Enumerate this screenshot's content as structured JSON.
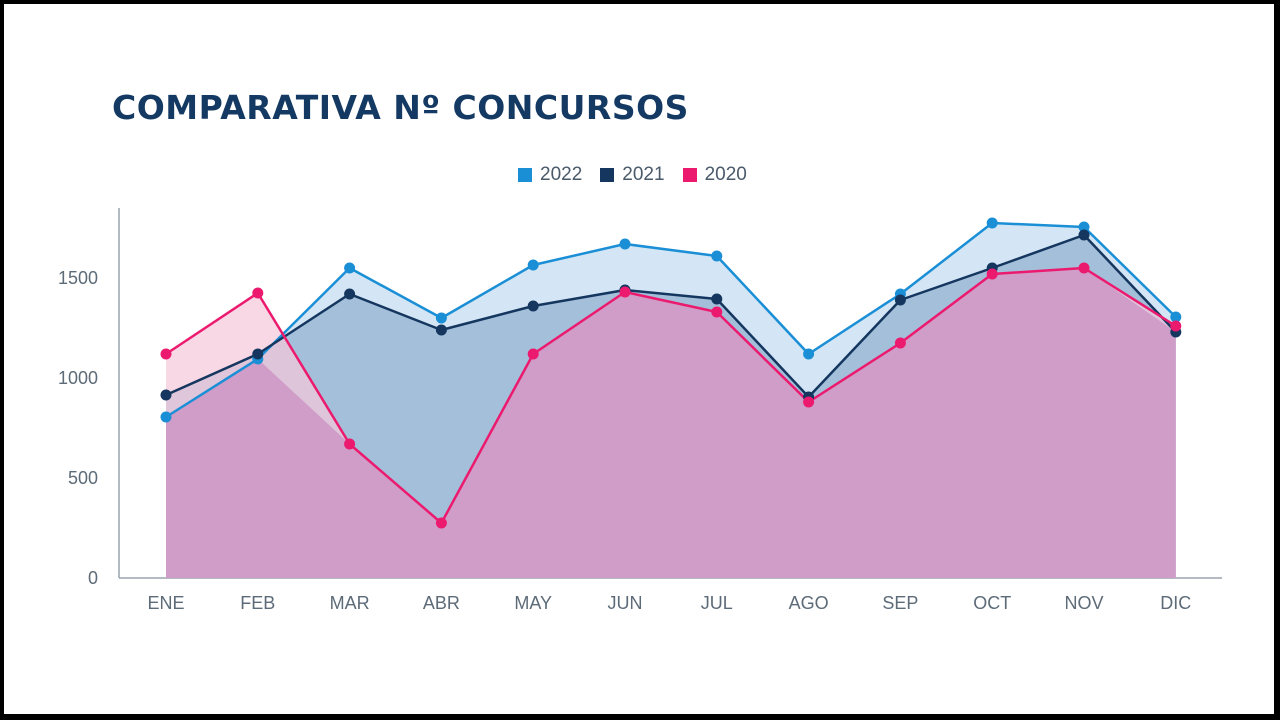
{
  "title": "COMPARATIVA Nº CONCURSOS",
  "colors": {
    "s2022": "#1b8fd6",
    "s2021": "#14365f",
    "s2020": "#ec1a6e",
    "fill2022": "#cfe3f4",
    "fill2021": "#9bb7d4",
    "fill2020": "#cf9dc8",
    "fill2020top": "#f6c8da",
    "axis": "#9aa3ad"
  },
  "chart_data": {
    "type": "area",
    "title": "COMPARATIVA Nº CONCURSOS",
    "xlabel": "",
    "ylabel": "",
    "categories": [
      "ENE",
      "FEB",
      "MAR",
      "ABR",
      "MAY",
      "JUN",
      "JUL",
      "AGO",
      "SEP",
      "OCT",
      "NOV",
      "DIC"
    ],
    "yticks": [
      "0",
      "500",
      "1000",
      "1500"
    ],
    "ylim": [
      0,
      1900
    ],
    "grid": false,
    "legend": "top-center",
    "series": [
      {
        "name": "2022",
        "color": "#1b8fd6",
        "values": [
          805,
          1095,
          1550,
          1300,
          1565,
          1670,
          1610,
          1120,
          1420,
          1775,
          1755,
          1305
        ]
      },
      {
        "name": "2021",
        "color": "#14365f",
        "values": [
          915,
          1120,
          1420,
          1240,
          1360,
          1440,
          1395,
          905,
          1390,
          1550,
          1715,
          1230
        ]
      },
      {
        "name": "2020",
        "color": "#ec1a6e",
        "values": [
          1120,
          1425,
          670,
          275,
          1120,
          1430,
          1330,
          880,
          1175,
          1520,
          1550,
          1260
        ]
      }
    ]
  }
}
